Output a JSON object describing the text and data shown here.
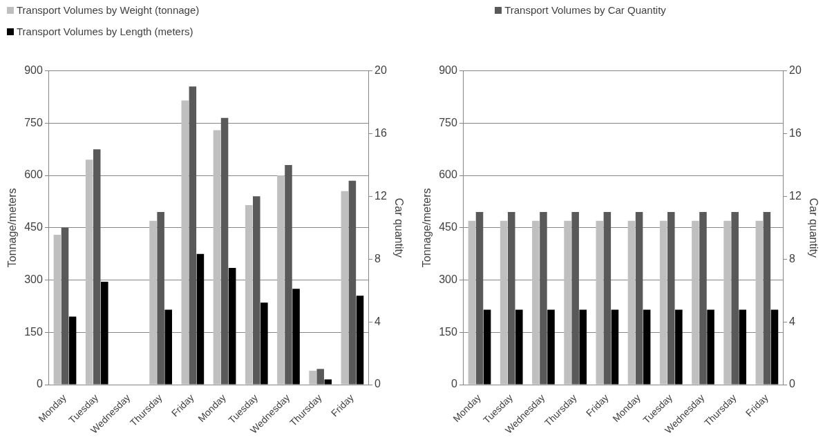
{
  "chart_data": [
    {
      "type": "bar",
      "categories": [
        "Monday",
        "Tuesday",
        "Wednesday",
        "Thursday",
        "Friday",
        "Monday",
        "Tuesday",
        "Wednesday",
        "Thursday",
        "Friday"
      ],
      "series": [
        {
          "name": "Transport Volumes by Weight (tonnage)",
          "color": "#bfbfbf",
          "values": [
            430,
            645,
            0,
            470,
            815,
            730,
            515,
            600,
            40,
            555
          ]
        },
        {
          "color": "#595959",
          "axis": "y2",
          "values": [
            10,
            15,
            0,
            11,
            19,
            17,
            12,
            14,
            1,
            13
          ]
        },
        {
          "name": "Transport Volumes by Length (meters)",
          "color": "#000000",
          "values": [
            195,
            295,
            0,
            215,
            375,
            335,
            235,
            275,
            15,
            255
          ]
        }
      ],
      "ylabel": "Tonnage/meters",
      "y2label": "Car quantity",
      "ylim": [
        0,
        900
      ],
      "yticks": [
        0,
        150,
        300,
        450,
        600,
        750,
        900
      ],
      "y2lim": [
        0,
        20
      ],
      "y2ticks": [
        0,
        4,
        8,
        12,
        16,
        20
      ],
      "grid": "y",
      "legend": "top left"
    },
    {
      "type": "bar",
      "categories": [
        "Monday",
        "Tuesday",
        "Wednesday",
        "Thursday",
        "Friday",
        "Monday",
        "Tuesday",
        "Wednesday",
        "Thursday",
        "Friday"
      ],
      "series": [
        {
          "color": "#bfbfbf",
          "values": [
            470,
            470,
            470,
            470,
            470,
            470,
            470,
            470,
            470,
            470
          ]
        },
        {
          "name": "Transport Volumes by Car Quantity",
          "color": "#595959",
          "axis": "y2",
          "values": [
            11,
            11,
            11,
            11,
            11,
            11,
            11,
            11,
            11,
            11
          ]
        },
        {
          "color": "#000000",
          "values": [
            215,
            215,
            215,
            215,
            215,
            215,
            215,
            215,
            215,
            215
          ]
        }
      ],
      "ylabel": "Tonnage/meters",
      "y2label": "Car quantity",
      "ylim": [
        0,
        900
      ],
      "yticks": [
        0,
        150,
        300,
        450,
        600,
        750,
        900
      ],
      "y2lim": [
        0,
        20
      ],
      "y2ticks": [
        0,
        4,
        8,
        12,
        16,
        20
      ],
      "grid": "y",
      "legend": "top"
    }
  ]
}
